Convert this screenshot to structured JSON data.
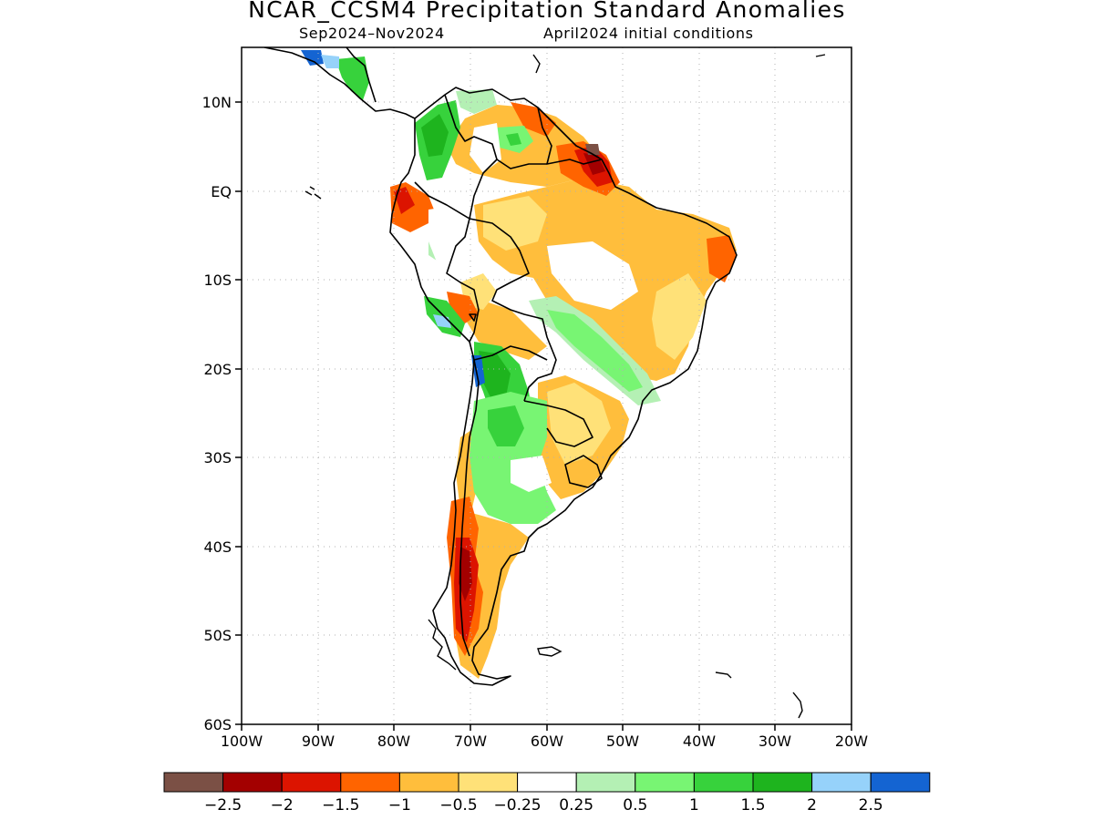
{
  "title": "NCAR_CCSM4 Precipitation Standard Anomalies",
  "subtitle_period": "Sep2024–Nov2024",
  "subtitle_ic": "April2024 initial conditions",
  "lat_labels": [
    "10N",
    "EQ",
    "10S",
    "20S",
    "30S",
    "40S",
    "50S",
    "60S"
  ],
  "lon_labels": [
    "100W",
    "90W",
    "80W",
    "70W",
    "60W",
    "50W",
    "40W",
    "30W",
    "20W"
  ],
  "legend": {
    "colors": [
      "#7b5045",
      "#a30000",
      "#dc1400",
      "#ff6400",
      "#ffbe3c",
      "#ffe178",
      "#ffffff",
      "#b4f0b4",
      "#78f573",
      "#37d23c",
      "#1eb41e",
      "#96d2fa",
      "#1464d2"
    ],
    "labels": [
      "−2.5",
      "−2",
      "−1.5",
      "−1",
      "−0.5",
      "−0.25",
      "0.25",
      "0.5",
      "1",
      "1.5",
      "2",
      "2.5"
    ]
  }
}
